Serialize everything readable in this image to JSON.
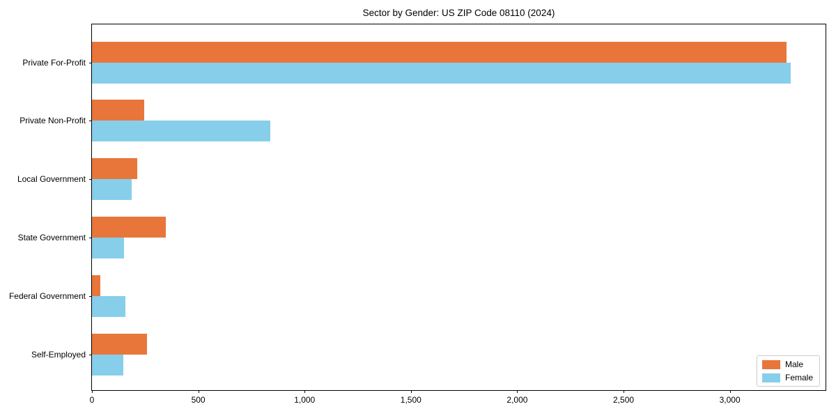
{
  "chart_data": {
    "type": "bar",
    "orientation": "horizontal",
    "title": "Sector by Gender: US ZIP Code 08110 (2024)",
    "categories": [
      "Private For-Profit",
      "Private Non-Profit",
      "Local Government",
      "State Government",
      "Federal Government",
      "Self-Employed"
    ],
    "series": [
      {
        "name": "Male",
        "color": "#e8763b",
        "values": [
          3268,
          245,
          213,
          347,
          39,
          258
        ]
      },
      {
        "name": "Female",
        "color": "#87ceeb",
        "values": [
          3285,
          838,
          186,
          150,
          157,
          147
        ]
      }
    ],
    "xlabel": "",
    "ylabel": "",
    "xlim": [
      0,
      3450
    ],
    "xticks": [
      {
        "value": 0,
        "label": "0"
      },
      {
        "value": 500,
        "label": "500"
      },
      {
        "value": 1000,
        "label": "1,000"
      },
      {
        "value": 1500,
        "label": "1,500"
      },
      {
        "value": 2000,
        "label": "2,000"
      },
      {
        "value": 2500,
        "label": "2,500"
      },
      {
        "value": 3000,
        "label": "3,000"
      }
    ],
    "grid": false,
    "legend": {
      "position": "lower right",
      "entries": [
        "Male",
        "Female"
      ]
    }
  }
}
